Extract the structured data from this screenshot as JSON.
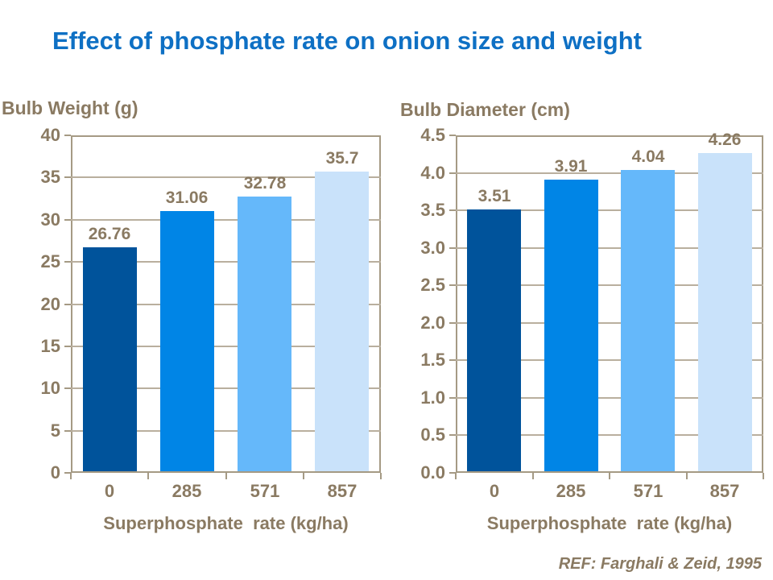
{
  "slide": {
    "title": "Effect of phosphate rate on onion size and weight",
    "reference": "REF: Farghali & Zeid, 1995"
  },
  "colors": {
    "title_blue": "#0e70c4",
    "text_brown": "#8a7a62",
    "gridline": "#b9af9e",
    "axis_border": "#a59a84",
    "bar_palette": [
      "#00539b",
      "#0085e6",
      "#65b8fa",
      "#c9e2fa"
    ]
  },
  "chart_data": [
    {
      "id": "bulb-weight",
      "type": "bar",
      "title": "Bulb Weight (g)",
      "xlabel": "Superphosphate  rate (kg/ha)",
      "ylabel": "",
      "categories": [
        "0",
        "285",
        "571",
        "857"
      ],
      "values": [
        26.76,
        31.06,
        32.78,
        35.7
      ],
      "data_labels": [
        "26.76",
        "31.06",
        "32.78",
        "35.7"
      ],
      "ylim": [
        0,
        40
      ],
      "y_ticks": [
        "0",
        "5",
        "10",
        "15",
        "20",
        "25",
        "30",
        "35",
        "40"
      ],
      "grid": true,
      "legend": "none"
    },
    {
      "id": "bulb-diameter",
      "type": "bar",
      "title": "Bulb Diameter (cm)",
      "xlabel": "Superphosphate  rate (kg/ha)",
      "ylabel": "",
      "categories": [
        "0",
        "285",
        "571",
        "857"
      ],
      "values": [
        3.51,
        3.91,
        4.04,
        4.26
      ],
      "data_labels": [
        "3.51",
        "3.91",
        "4.04",
        "4.26"
      ],
      "ylim": [
        0,
        4.5
      ],
      "y_ticks": [
        "0.0",
        "0.5",
        "1.0",
        "1.5",
        "2.0",
        "2.5",
        "3.0",
        "3.5",
        "4.0",
        "4.5"
      ],
      "grid": true,
      "legend": "none"
    }
  ]
}
